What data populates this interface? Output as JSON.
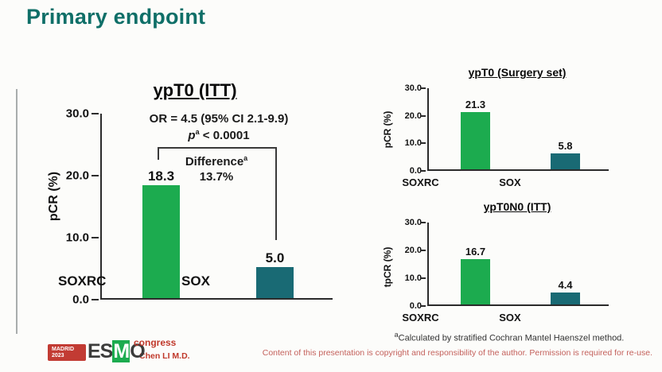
{
  "slide": {
    "title": "Primary endpoint",
    "presenter": "Chen LI M.D.",
    "copyright": "Content of this presentation is copyright and responsibility of the author. Permission is required for re-use.",
    "footnote": {
      "sup": "a",
      "text": "Calculated by stratified Cochran Mantel Haenszel method."
    }
  },
  "logo": {
    "venue": "MADRID",
    "year": "2023",
    "org_e": "ES",
    "org_m": "M",
    "org_o": "O",
    "event": "congress"
  },
  "colors": {
    "soxrc_bar": "#1cab4f",
    "sox_bar": "#196a74",
    "title_teal": "#0f6f68",
    "footer_red": "#c4615c",
    "presenter_red": "#c0392b"
  },
  "chart_data": [
    {
      "type": "bar",
      "title": "ypT0 (ITT)",
      "ylabel": "pCR (%)",
      "ylim": [
        0,
        30
      ],
      "yticks": [
        "30.0",
        "20.0",
        "10.0",
        "0.0"
      ],
      "categories": [
        "SOXRC",
        "SOX"
      ],
      "values": [
        18.3,
        5.0
      ],
      "value_labels": [
        "18.3",
        "5.0"
      ],
      "grid": false,
      "annotations": {
        "or_line": "OR = 4.5 (95% CI 2.1-9.9)",
        "p_prefix": "p",
        "p_sup": "a",
        "p_rest": " < 0.0001",
        "diff_label": "Difference",
        "diff_sup": "a",
        "diff_value": "13.7%"
      }
    },
    {
      "type": "bar",
      "title": "ypT0 (Surgery set)",
      "ylabel": "pCR (%)",
      "ylim": [
        0,
        30
      ],
      "yticks": [
        "30.0",
        "20.0",
        "10.0",
        "0.0"
      ],
      "categories": [
        "SOXRC",
        "SOX"
      ],
      "values": [
        21.3,
        5.8
      ],
      "value_labels": [
        "21.3",
        "5.8"
      ],
      "grid": false
    },
    {
      "type": "bar",
      "title": "ypT0N0 (ITT)",
      "ylabel": "tpCR (%)",
      "ylim": [
        0,
        30
      ],
      "yticks": [
        "30.0",
        "20.0",
        "10.0",
        "0.0"
      ],
      "categories": [
        "SOXRC",
        "SOX"
      ],
      "values": [
        16.7,
        4.4
      ],
      "value_labels": [
        "16.7",
        "4.4"
      ],
      "grid": false
    }
  ]
}
